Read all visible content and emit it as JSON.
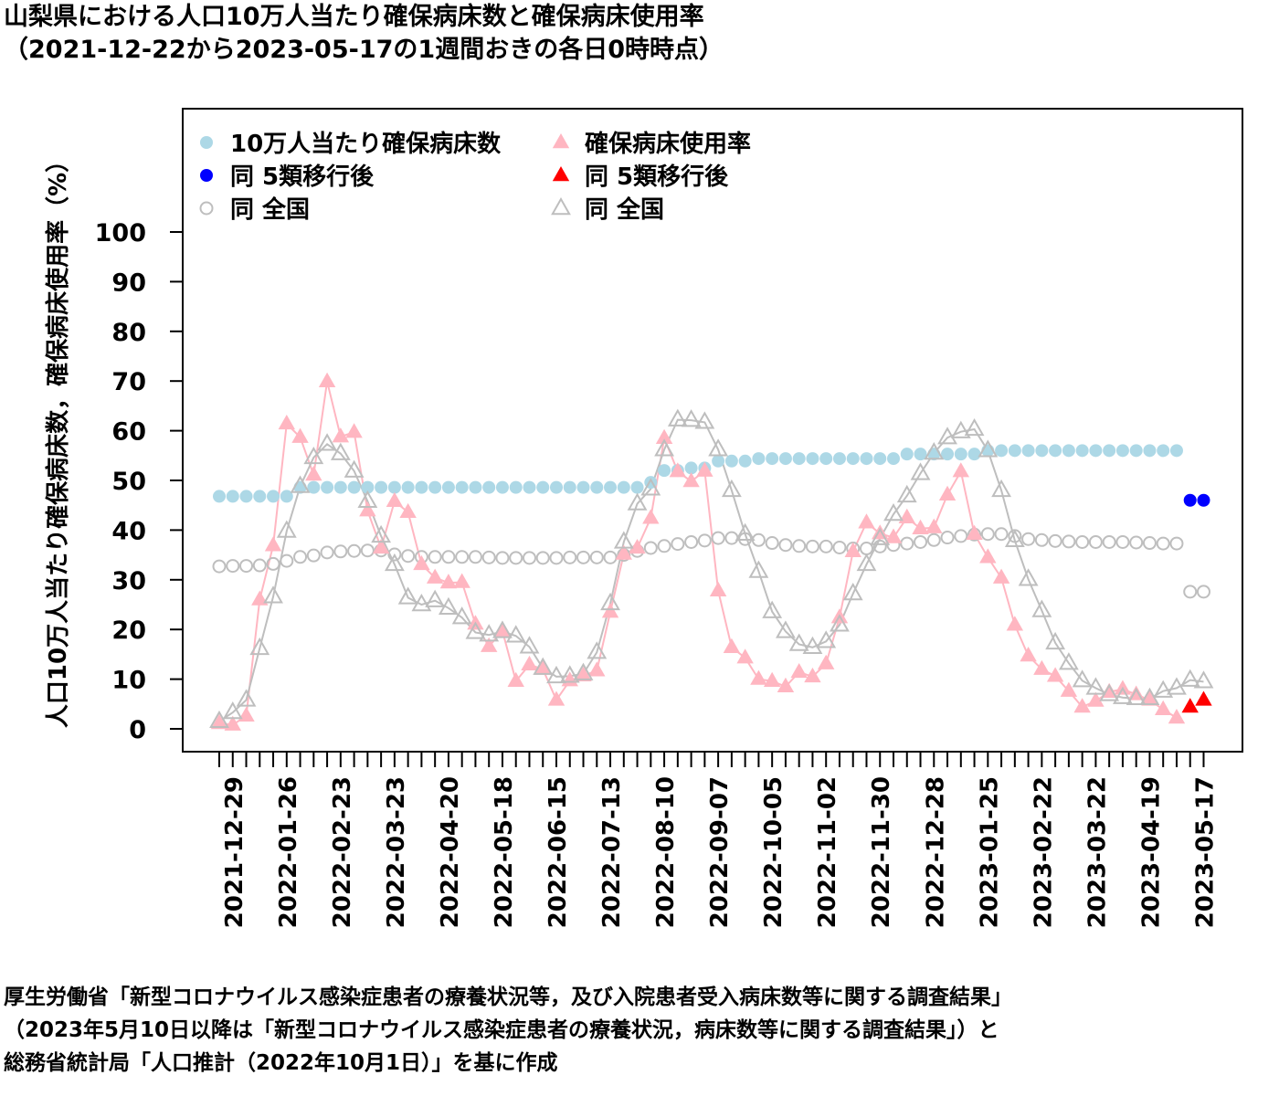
{
  "title": {
    "line1": "山梨県における人口10万人当たり確保病床数と確保病床使用率",
    "line2": "（2021-12-22から2023-05-17の1週間おきの各日0時時点）"
  },
  "source": {
    "line1": "厚生労働省「新型コロナウイルス感染症患者の療養状況等，及び入院患者受入病床数等に関する調査結果」",
    "line2": "（2023年5月10日以降は「新型コロナウイルス感染症患者の療養状況，病床数等に関する調査結果」）と",
    "line3": "総務省統計局「人口推計（2022年10月1日）」を基に作成"
  },
  "colors": {
    "beds": "#add8e6",
    "beds_after": "#0000ff",
    "beds_national": "#bebebe",
    "usage": "#ffb6c1",
    "usage_after": "#ff0000",
    "usage_national": "#bebebe"
  },
  "chart_data": {
    "type": "scatter",
    "ylabel": "人口10万人当たり確保病床数，確保病床使用率（%）",
    "ylim": [
      0,
      100
    ],
    "yticks": [
      0,
      10,
      20,
      30,
      40,
      50,
      60,
      70,
      80,
      90,
      100
    ],
    "legend": {
      "position": "top-left",
      "items": [
        {
          "key": "beds",
          "label": "10万人当たり確保病床数"
        },
        {
          "key": "beds_after",
          "label": "同 5類移行後"
        },
        {
          "key": "beds_national",
          "label": "同 全国"
        },
        {
          "key": "usage",
          "label": "確保病床使用率"
        },
        {
          "key": "usage_after",
          "label": "同 5類移行後"
        },
        {
          "key": "usage_national",
          "label": "同 全国"
        }
      ]
    },
    "x_labels": [
      "2021-12-29",
      "2022-01-26",
      "2022-02-23",
      "2022-03-23",
      "2022-04-20",
      "2022-05-18",
      "2022-06-15",
      "2022-07-13",
      "2022-08-10",
      "2022-09-07",
      "2022-10-05",
      "2022-11-02",
      "2022-11-30",
      "2022-12-28",
      "2023-01-25",
      "2023-02-22",
      "2023-03-22",
      "2023-04-19",
      "2023-05-17"
    ],
    "dates": [
      "2021-12-22",
      "2021-12-29",
      "2022-01-05",
      "2022-01-12",
      "2022-01-19",
      "2022-01-26",
      "2022-02-02",
      "2022-02-09",
      "2022-02-16",
      "2022-02-23",
      "2022-03-02",
      "2022-03-09",
      "2022-03-16",
      "2022-03-23",
      "2022-03-30",
      "2022-04-06",
      "2022-04-13",
      "2022-04-20",
      "2022-04-27",
      "2022-05-04",
      "2022-05-11",
      "2022-05-18",
      "2022-05-25",
      "2022-06-01",
      "2022-06-08",
      "2022-06-15",
      "2022-06-22",
      "2022-06-29",
      "2022-07-06",
      "2022-07-13",
      "2022-07-20",
      "2022-07-27",
      "2022-08-03",
      "2022-08-10",
      "2022-08-17",
      "2022-08-24",
      "2022-08-31",
      "2022-09-07",
      "2022-09-14",
      "2022-09-21",
      "2022-09-28",
      "2022-10-05",
      "2022-10-12",
      "2022-10-19",
      "2022-10-26",
      "2022-11-02",
      "2022-11-09",
      "2022-11-16",
      "2022-11-23",
      "2022-11-30",
      "2022-12-07",
      "2022-12-14",
      "2022-12-21",
      "2022-12-28",
      "2023-01-04",
      "2023-01-11",
      "2023-01-18",
      "2023-01-25",
      "2023-02-01",
      "2023-02-08",
      "2023-02-15",
      "2023-02-22",
      "2023-03-01",
      "2023-03-08",
      "2023-03-15",
      "2023-03-22",
      "2023-03-29",
      "2023-04-05",
      "2023-04-12",
      "2023-04-19",
      "2023-04-26",
      "2023-05-03",
      "2023-05-10",
      "2023-05-17"
    ],
    "series": [
      {
        "key": "beds",
        "marker": "circle-filled",
        "values": [
          46.8,
          46.8,
          46.8,
          46.8,
          46.8,
          46.8,
          48.6,
          48.6,
          48.6,
          48.6,
          48.6,
          48.6,
          48.6,
          48.6,
          48.6,
          48.6,
          48.6,
          48.6,
          48.6,
          48.6,
          48.6,
          48.6,
          48.6,
          48.6,
          48.6,
          48.6,
          48.6,
          48.6,
          48.6,
          48.6,
          48.6,
          48.6,
          49.6,
          52.0,
          52.0,
          52.5,
          52.5,
          53.9,
          53.9,
          53.9,
          54.4,
          54.4,
          54.4,
          54.4,
          54.4,
          54.4,
          54.4,
          54.4,
          54.4,
          54.4,
          54.4,
          55.3,
          55.3,
          55.3,
          55.3,
          55.3,
          55.3,
          56.0,
          56.0,
          56.0,
          56.0,
          56.0,
          56.0,
          56.0,
          56.0,
          56.0,
          56.0,
          56.0,
          56.0,
          56.0,
          56.0,
          56.0,
          null,
          null
        ]
      },
      {
        "key": "beds_after",
        "marker": "circle-filled",
        "values": [
          null,
          null,
          null,
          null,
          null,
          null,
          null,
          null,
          null,
          null,
          null,
          null,
          null,
          null,
          null,
          null,
          null,
          null,
          null,
          null,
          null,
          null,
          null,
          null,
          null,
          null,
          null,
          null,
          null,
          null,
          null,
          null,
          null,
          null,
          null,
          null,
          null,
          null,
          null,
          null,
          null,
          null,
          null,
          null,
          null,
          null,
          null,
          null,
          null,
          null,
          null,
          null,
          null,
          null,
          null,
          null,
          null,
          null,
          null,
          null,
          null,
          null,
          null,
          null,
          null,
          null,
          null,
          null,
          null,
          null,
          null,
          null,
          46.0,
          46.0
        ]
      },
      {
        "key": "beds_national",
        "marker": "circle-open",
        "values": [
          32.7,
          32.8,
          32.8,
          32.9,
          33.2,
          33.8,
          34.6,
          34.9,
          35.5,
          35.7,
          35.8,
          35.9,
          35.9,
          35.1,
          34.8,
          34.6,
          34.6,
          34.6,
          34.6,
          34.6,
          34.5,
          34.4,
          34.4,
          34.4,
          34.4,
          34.4,
          34.5,
          34.5,
          34.5,
          34.5,
          35.0,
          35.8,
          36.4,
          36.8,
          37.2,
          37.6,
          37.9,
          38.4,
          38.4,
          38.2,
          38.0,
          37.4,
          37.0,
          36.8,
          36.7,
          36.7,
          36.5,
          36.3,
          36.3,
          36.7,
          37.0,
          37.3,
          37.6,
          38.0,
          38.5,
          38.8,
          39.1,
          39.2,
          39.2,
          38.8,
          38.2,
          38.0,
          37.8,
          37.7,
          37.6,
          37.6,
          37.6,
          37.6,
          37.5,
          37.4,
          37.3,
          37.3,
          27.6,
          27.6
        ],
        "line": false
      },
      {
        "key": "usage",
        "marker": "triangle-filled",
        "values": [
          1.1,
          0.8,
          2.6,
          26.0,
          36.9,
          61.4,
          58.7,
          51.1,
          69.9,
          58.8,
          59.7,
          43.9,
          36.4,
          45.8,
          43.6,
          33.1,
          30.4,
          29.4,
          29.5,
          21.1,
          16.6,
          19.7,
          9.6,
          12.9,
          12.0,
          5.8,
          9.7,
          10.7,
          11.7,
          23.5,
          35.2,
          36.4,
          42.4,
          58.5,
          51.8,
          49.8,
          51.9,
          27.8,
          16.4,
          14.3,
          10.0,
          9.6,
          8.5,
          11.4,
          10.5,
          13.1,
          22.4,
          35.7,
          41.5,
          39.3,
          38.5,
          42.5,
          40.3,
          40.5,
          47.1,
          51.8,
          39.2,
          34.5,
          30.4,
          20.9,
          14.7,
          12.0,
          10.6,
          7.6,
          4.4,
          5.6,
          7.4,
          8.0,
          6.9,
          5.8,
          3.9,
          2.2,
          null,
          null
        ],
        "line": true
      },
      {
        "key": "usage_after",
        "marker": "triangle-filled",
        "values": [
          null,
          null,
          null,
          null,
          null,
          null,
          null,
          null,
          null,
          null,
          null,
          null,
          null,
          null,
          null,
          null,
          null,
          null,
          null,
          null,
          null,
          null,
          null,
          null,
          null,
          null,
          null,
          null,
          null,
          null,
          null,
          null,
          null,
          null,
          null,
          null,
          null,
          null,
          null,
          null,
          null,
          null,
          null,
          null,
          null,
          null,
          null,
          null,
          null,
          null,
          null,
          null,
          null,
          null,
          null,
          null,
          null,
          null,
          null,
          null,
          null,
          null,
          null,
          null,
          null,
          null,
          null,
          null,
          null,
          null,
          null,
          null,
          4.4,
          5.8
        ]
      },
      {
        "key": "usage_national",
        "marker": "triangle-open",
        "values": [
          1.5,
          3.3,
          5.8,
          16.2,
          26.6,
          39.8,
          48.8,
          54.6,
          57.3,
          55.4,
          51.9,
          45.8,
          38.8,
          33.1,
          26.4,
          25.0,
          25.8,
          24.3,
          22.4,
          19.4,
          18.9,
          19.6,
          18.7,
          16.5,
          12.2,
          10.5,
          10.6,
          11.1,
          15.4,
          25.2,
          37.6,
          45.3,
          48.3,
          56.2,
          62.2,
          62.1,
          61.7,
          56.2,
          48.0,
          39.2,
          31.7,
          23.6,
          19.6,
          17.0,
          16.4,
          17.6,
          20.9,
          27.2,
          33.1,
          38.3,
          43.2,
          46.9,
          51.4,
          55.5,
          58.6,
          59.8,
          60.3,
          56.0,
          48.0,
          37.9,
          30.1,
          23.8,
          17.3,
          13.2,
          9.7,
          8.2,
          6.9,
          6.3,
          6.1,
          6.1,
          7.6,
          8.2,
          9.8,
          9.5
        ],
        "line": true
      }
    ]
  }
}
